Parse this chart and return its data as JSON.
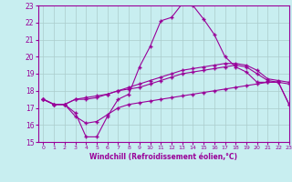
{
  "xlabel": "Windchill (Refroidissement éolien,°C)",
  "ylabel": "",
  "background_color": "#c8eef0",
  "line_color": "#990099",
  "grid_color": "#aacccc",
  "x": [
    0,
    1,
    2,
    3,
    4,
    5,
    6,
    7,
    8,
    9,
    10,
    11,
    12,
    13,
    14,
    15,
    16,
    17,
    18,
    19,
    20,
    21,
    22,
    23
  ],
  "curve1": [
    17.5,
    17.2,
    17.2,
    16.7,
    15.3,
    15.3,
    16.5,
    17.5,
    17.8,
    19.4,
    20.6,
    22.1,
    22.3,
    23.1,
    23.0,
    22.2,
    21.3,
    20.0,
    19.4,
    19.1,
    18.5,
    18.5,
    18.5,
    17.2
  ],
  "curve2": [
    17.5,
    17.2,
    17.2,
    17.5,
    17.5,
    17.6,
    17.8,
    18.0,
    18.2,
    18.4,
    18.6,
    18.8,
    19.0,
    19.2,
    19.3,
    19.4,
    19.5,
    19.6,
    19.6,
    19.5,
    19.2,
    18.7,
    18.6,
    18.5
  ],
  "curve3": [
    17.5,
    17.2,
    17.2,
    17.5,
    17.6,
    17.7,
    17.8,
    18.0,
    18.1,
    18.2,
    18.4,
    18.6,
    18.8,
    19.0,
    19.1,
    19.2,
    19.3,
    19.4,
    19.5,
    19.4,
    19.0,
    18.6,
    18.5,
    18.4
  ],
  "curve4": [
    17.5,
    17.2,
    17.2,
    16.5,
    16.1,
    16.2,
    16.6,
    17.0,
    17.2,
    17.3,
    17.4,
    17.5,
    17.6,
    17.7,
    17.8,
    17.9,
    18.0,
    18.1,
    18.2,
    18.3,
    18.4,
    18.5,
    18.5,
    17.2
  ],
  "ylim": [
    15,
    23
  ],
  "xlim": [
    -0.5,
    23
  ],
  "yticks": [
    15,
    16,
    17,
    18,
    19,
    20,
    21,
    22,
    23
  ],
  "xticks": [
    0,
    1,
    2,
    3,
    4,
    5,
    6,
    7,
    8,
    9,
    10,
    11,
    12,
    13,
    14,
    15,
    16,
    17,
    18,
    19,
    20,
    21,
    22,
    23
  ]
}
